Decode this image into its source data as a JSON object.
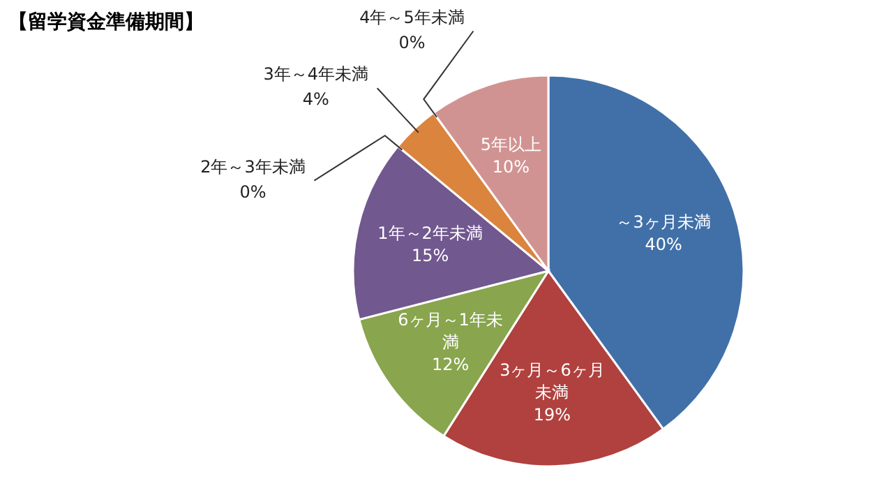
{
  "chart_data": {
    "type": "pie",
    "title": "【留学資金準備期間】",
    "categories": [
      "～3ヶ月未満",
      "3ヶ月～6ヶ月未満",
      "6ヶ月～1年未満",
      "1年～2年未満",
      "2年～3年未満",
      "3年～4年未満",
      "4年～5年未満",
      "5年以上"
    ],
    "values": [
      40,
      19,
      12,
      15,
      0,
      4,
      0,
      10
    ],
    "value_labels": [
      "40%",
      "19%",
      "12%",
      "15%",
      "0%",
      "4%",
      "0%",
      "10%"
    ],
    "colors": [
      "#4170a8",
      "#b0413e",
      "#89a54e",
      "#71588f",
      null,
      "#db843d",
      null,
      "#d19392"
    ]
  }
}
